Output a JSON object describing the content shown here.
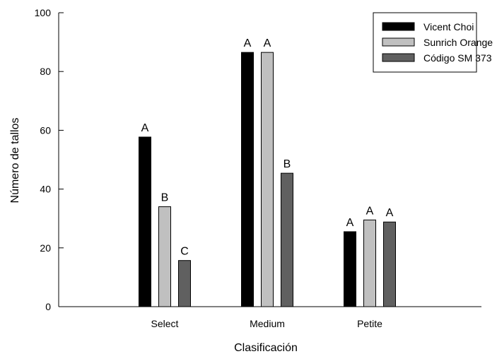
{
  "chart_data": {
    "type": "bar",
    "title": "",
    "xlabel": "Clasificación",
    "ylabel": "Número de tallos",
    "ylim": [
      0,
      100
    ],
    "yticks": [
      0,
      20,
      40,
      60,
      80,
      100
    ],
    "grid": false,
    "legend_position": "top-right",
    "categories": [
      "Select",
      "Medium",
      "Petite"
    ],
    "series": [
      {
        "name": "Vicent Choi",
        "color": "#000000",
        "values": [
          57.7,
          86.5,
          25.5
        ],
        "labels": [
          "A",
          "A",
          "A"
        ]
      },
      {
        "name": "Sunrich Orange",
        "color": "#c0c0c0",
        "values": [
          34.0,
          86.5,
          29.5
        ],
        "labels": [
          "B",
          "A",
          "A"
        ]
      },
      {
        "name": "Código SM 373",
        "color": "#606060",
        "values": [
          15.7,
          45.4,
          28.8
        ],
        "labels": [
          "C",
          "B",
          "A"
        ]
      }
    ]
  }
}
